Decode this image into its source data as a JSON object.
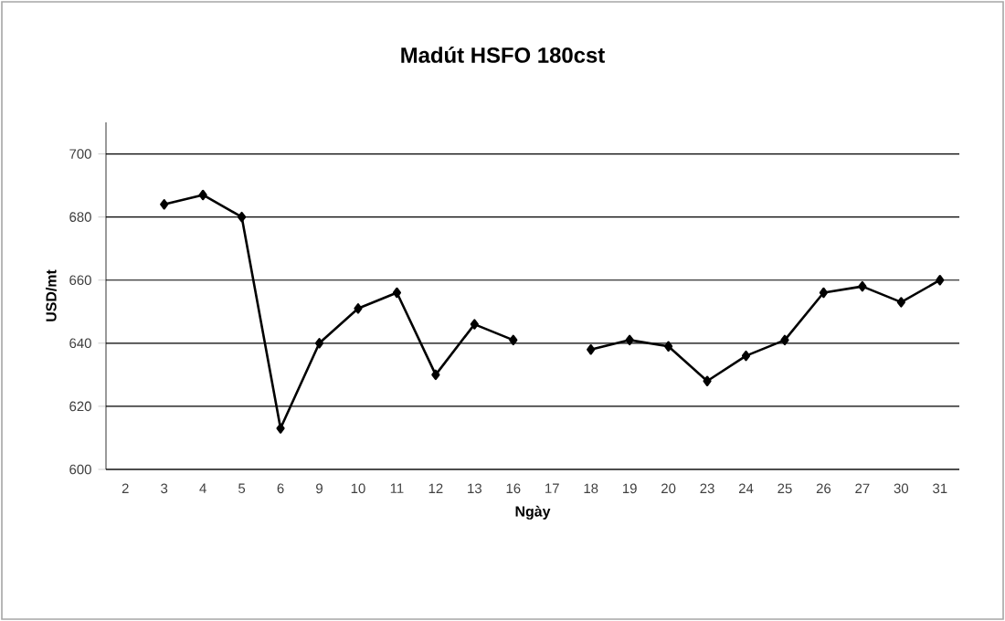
{
  "chart_data": {
    "type": "line",
    "title": "Madút HSFO 180cst",
    "xlabel": "Ngày",
    "ylabel": "USD/mt",
    "categories": [
      "2",
      "3",
      "4",
      "5",
      "6",
      "9",
      "10",
      "11",
      "12",
      "13",
      "16",
      "17",
      "18",
      "19",
      "20",
      "23",
      "24",
      "25",
      "26",
      "27",
      "30",
      "31"
    ],
    "series": [
      {
        "color": "#000000",
        "values": [
          null,
          684,
          687,
          680,
          613,
          640,
          651,
          656,
          630,
          646,
          641,
          null,
          638,
          641,
          639,
          628,
          636,
          641,
          656,
          658,
          653,
          660
        ]
      }
    ],
    "ylim": [
      600,
      710
    ],
    "yticks": [
      600,
      620,
      640,
      660,
      680,
      700
    ],
    "grid": "y",
    "marker": "diamond",
    "line_style": "solid"
  }
}
